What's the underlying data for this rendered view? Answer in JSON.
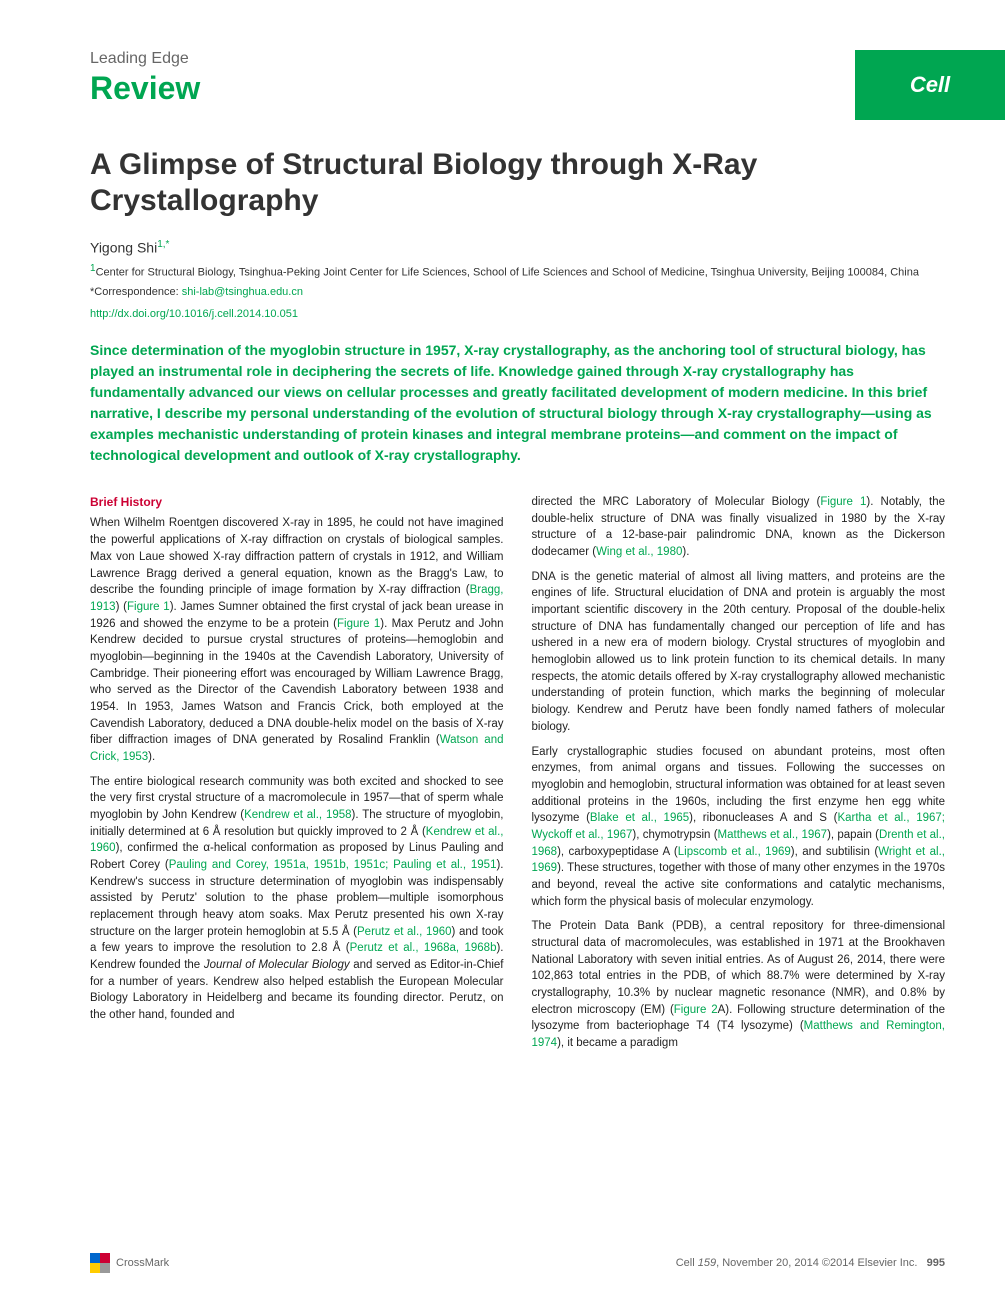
{
  "journal_brand": "Cell",
  "header": {
    "leading_edge": "Leading Edge",
    "review": "Review"
  },
  "article": {
    "title": "A Glimpse of Structural Biology through X-Ray Crystallography",
    "author": "Yigong Shi",
    "author_markers": "1,*",
    "affiliation_marker": "1",
    "affiliation": "Center for Structural Biology, Tsinghua-Peking Joint Center for Life Sciences, School of Life Sciences and School of Medicine, Tsinghua University, Beijing 100084, China",
    "correspondence_label": "*Correspondence: ",
    "email": "shi-lab@tsinghua.edu.cn",
    "doi": "http://dx.doi.org/10.1016/j.cell.2014.10.051",
    "abstract": "Since determination of the myoglobin structure in 1957, X-ray crystallography, as the anchoring tool of structural biology, has played an instrumental role in deciphering the secrets of life. Knowledge gained through X-ray crystallography has fundamentally advanced our views on cellular processes and greatly facilitated development of modern medicine. In this brief narrative, I describe my personal understanding of the evolution of structural biology through X-ray crystallography—using as examples mechanistic understanding of protein kinases and integral membrane proteins—and comment on the impact of technological development and outlook of X-ray crystallography."
  },
  "section": {
    "brief_history_title": "Brief History"
  },
  "body": {
    "col1_p1_a": "When Wilhelm Roentgen discovered X-ray in 1895, he could not have imagined the powerful applications of X-ray diffraction on crystals of biological samples. Max von Laue showed X-ray diffraction pattern of crystals in 1912, and William Lawrence Bragg derived a general equation, known as the Bragg's Law, to describe the founding principle of image formation by X-ray diffraction (",
    "col1_p1_ref1": "Bragg, 1913",
    "col1_p1_b": ") (",
    "col1_p1_ref2": "Figure 1",
    "col1_p1_c": "). James Sumner obtained the first crystal of jack bean urease in 1926 and showed the enzyme to be a protein (",
    "col1_p1_ref3": "Figure 1",
    "col1_p1_d": "). Max Perutz and John Kendrew decided to pursue crystal structures of proteins—hemoglobin and myoglobin—beginning in the 1940s at the Cavendish Laboratory, University of Cambridge. Their pioneering effort was encouraged by William Lawrence Bragg, who served as the Director of the Cavendish Laboratory between 1938 and 1954. In 1953, James Watson and Francis Crick, both employed at the Cavendish Laboratory, deduced a DNA double-helix model on the basis of X-ray fiber diffraction images of DNA generated by Rosalind Franklin (",
    "col1_p1_ref4": "Watson and Crick, 1953",
    "col1_p1_e": ").",
    "col1_p2_a": "The entire biological research community was both excited and shocked to see the very first crystal structure of a macromolecule in 1957—that of sperm whale myoglobin by John Kendrew (",
    "col1_p2_ref1": "Kendrew et al., 1958",
    "col1_p2_b": "). The structure of myoglobin, initially determined at 6 Å resolution but quickly improved to 2 Å (",
    "col1_p2_ref2": "Kendrew et al., 1960",
    "col1_p2_c": "), confirmed the α-helical conformation as proposed by Linus Pauling and Robert Corey (",
    "col1_p2_ref3": "Pauling and Corey, 1951a, 1951b, 1951c; Pauling et al., 1951",
    "col1_p2_d": "). Kendrew's success in structure determination of myoglobin was indispensably assisted by Perutz' solution to the phase problem—multiple isomorphous replacement through heavy atom soaks. Max Perutz presented his own X-ray structure on the larger protein hemoglobin at 5.5 Å (",
    "col1_p2_ref4": "Perutz et al., 1960",
    "col1_p2_e": ") and took a few years to improve the resolution to 2.8 Å (",
    "col1_p2_ref5": "Perutz et al., 1968a, 1968b",
    "col1_p2_f": "). Kendrew founded the ",
    "col1_p2_italic": "Journal of Molecular Biology",
    "col1_p2_g": " and served as Editor-in-Chief for a number of years. Kendrew also helped establish the European Molecular Biology Laboratory in Heidelberg and became its founding director. Perutz, on the other hand, founded and",
    "col2_p1_a": "directed the MRC Laboratory of Molecular Biology (",
    "col2_p1_ref1": "Figure 1",
    "col2_p1_b": "). Notably, the double-helix structure of DNA was finally visualized in 1980 by the X-ray structure of a 12-base-pair palindromic DNA, known as the Dickerson dodecamer (",
    "col2_p1_ref2": "Wing et al., 1980",
    "col2_p1_c": ").",
    "col2_p2": "DNA is the genetic material of almost all living matters, and proteins are the engines of life. Structural elucidation of DNA and protein is arguably the most important scientific discovery in the 20th century. Proposal of the double-helix structure of DNA has fundamentally changed our perception of life and has ushered in a new era of modern biology. Crystal structures of myoglobin and hemoglobin allowed us to link protein function to its chemical details. In many respects, the atomic details offered by X-ray crystallography allowed mechanistic understanding of protein function, which marks the beginning of molecular biology. Kendrew and Perutz have been fondly named fathers of molecular biology.",
    "col2_p3_a": "Early crystallographic studies focused on abundant proteins, most often enzymes, from animal organs and tissues. Following the successes on myoglobin and hemoglobin, structural information was obtained for at least seven additional proteins in the 1960s, including the first enzyme hen egg white lysozyme (",
    "col2_p3_ref1": "Blake et al., 1965",
    "col2_p3_b": "), ribonucleases A and S (",
    "col2_p3_ref2": "Kartha et al., 1967; Wyckoff et al., 1967",
    "col2_p3_c": "), chymotrypsin (",
    "col2_p3_ref3": "Matthews et al., 1967",
    "col2_p3_d": "), papain (",
    "col2_p3_ref4": "Drenth et al., 1968",
    "col2_p3_e": "), carboxypeptidase A (",
    "col2_p3_ref5": "Lipscomb et al., 1969",
    "col2_p3_f": "), and subtilisin (",
    "col2_p3_ref6": "Wright et al., 1969",
    "col2_p3_g": "). These structures, together with those of many other enzymes in the 1970s and beyond, reveal the active site conformations and catalytic mechanisms, which form the physical basis of molecular enzymology.",
    "col2_p4_a": "The Protein Data Bank (PDB), a central repository for three-dimensional structural data of macromolecules, was established in 1971 at the Brookhaven National Laboratory with seven initial entries. As of August 26, 2014, there were 102,863 total entries in the PDB, of which 88.7% were determined by X-ray crystallography, 10.3% by nuclear magnetic resonance (NMR), and 0.8% by electron microscopy (EM) (",
    "col2_p4_ref1": "Figure 2",
    "col2_p4_b": "A). Following structure determination of the lysozyme from bacteriophage T4 (T4 lysozyme) (",
    "col2_p4_ref2": "Matthews and Remington, 1974",
    "col2_p4_c": "), it became a paradigm"
  },
  "footer": {
    "crossmark_label": "CrossMark",
    "journal": "Cell",
    "volume": "159",
    "date": "November 20, 2014",
    "copyright": "©2014 Elsevier Inc.",
    "page": "995"
  },
  "colors": {
    "brand_green": "#00a651",
    "heading_red": "#cc0033",
    "text": "#222222",
    "muted": "#666666"
  }
}
